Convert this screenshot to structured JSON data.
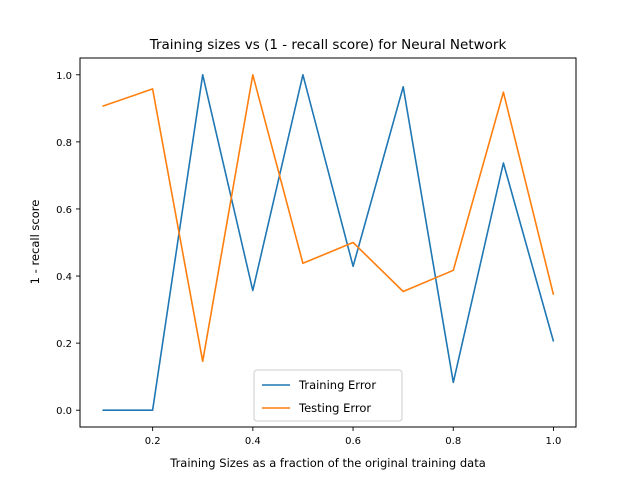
{
  "chart_data": {
    "type": "line",
    "title": "Training sizes vs (1 - recall score) for Neural Network",
    "xlabel": "Training Sizes as a fraction of the original training data",
    "ylabel": "1 - recall score",
    "x": [
      0.1,
      0.2,
      0.3,
      0.4,
      0.5,
      0.6,
      0.7,
      0.8,
      0.9,
      1.0
    ],
    "series": [
      {
        "name": "Training Error",
        "color": "#1f77b4",
        "values": [
          0.0,
          0.0,
          1.0,
          0.357,
          1.0,
          0.429,
          0.964,
          0.083,
          0.737,
          0.205
        ]
      },
      {
        "name": "Testing Error",
        "color": "#ff7f0e",
        "values": [
          0.906,
          0.958,
          0.146,
          1.0,
          0.438,
          0.5,
          0.354,
          0.417,
          0.948,
          0.344
        ]
      }
    ],
    "xlim": [
      0.055,
      1.045
    ],
    "ylim": [
      -0.05,
      1.05
    ],
    "xticks": [
      0.2,
      0.4,
      0.6,
      0.8,
      1.0
    ],
    "xtick_labels": [
      "0.2",
      "0.4",
      "0.6",
      "0.8",
      "1.0"
    ],
    "yticks": [
      0.0,
      0.2,
      0.4,
      0.6,
      0.8,
      1.0
    ],
    "ytick_labels": [
      "0.0",
      "0.2",
      "0.4",
      "0.6",
      "0.8",
      "1.0"
    ],
    "grid": false,
    "legend_position": "lower center"
  }
}
